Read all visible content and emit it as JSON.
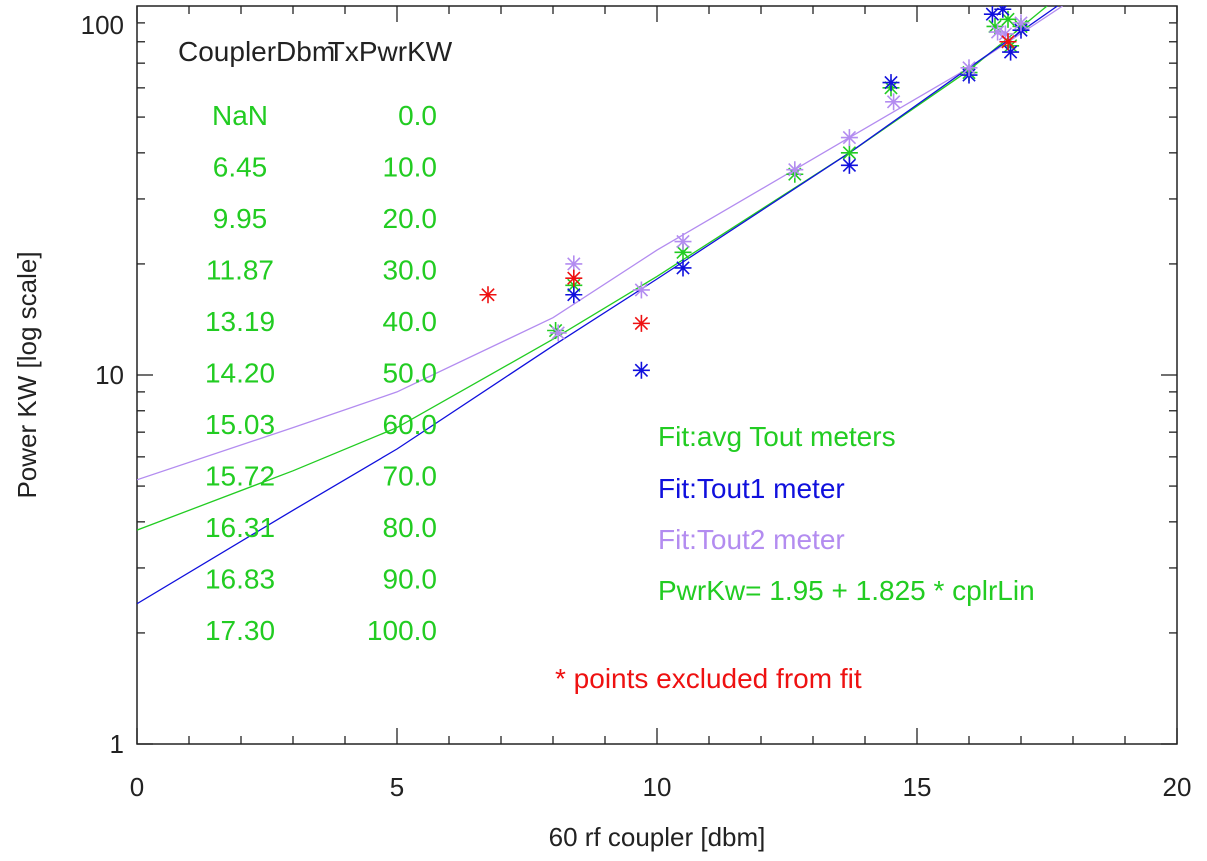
{
  "chart_data": {
    "type": "scatter",
    "xlabel": "60 rf coupler [dbm]",
    "ylabel": "Power KW [log scale]",
    "xlim": [
      0,
      20
    ],
    "ylim": [
      1,
      100
    ],
    "y_scale": "log",
    "x_ticks": [
      0,
      5,
      10,
      15,
      20
    ],
    "x_tick_labels": [
      "0",
      "5",
      "10",
      "15",
      "20"
    ],
    "y_ticks": [
      1,
      10,
      100
    ],
    "y_tick_labels": [
      "1",
      "10",
      "100"
    ],
    "table": {
      "headers": [
        "CouplerDbm",
        "TxPwrKW"
      ],
      "rows": [
        [
          "NaN",
          "0.0"
        ],
        [
          "6.45",
          "10.0"
        ],
        [
          "9.95",
          "20.0"
        ],
        [
          "11.87",
          "30.0"
        ],
        [
          "13.19",
          "40.0"
        ],
        [
          "14.20",
          "50.0"
        ],
        [
          "15.03",
          "60.0"
        ],
        [
          "15.72",
          "70.0"
        ],
        [
          "16.31",
          "80.0"
        ],
        [
          "16.83",
          "90.0"
        ],
        [
          "17.30",
          "100.0"
        ]
      ]
    },
    "annotations": {
      "fit_avg": "Fit:avg Tout meters",
      "fit_tout1": "Fit:Tout1 meter",
      "fit_tout2": "Fit:Tout2 meter",
      "formula": "PwrKw= 1.95 + 1.825 * cplrLin",
      "excluded_note": "* points excluded from fit"
    },
    "colors": {
      "avg": "#22cc22",
      "tout1": "#1010dd",
      "tout2": "#b38cf0",
      "excluded": "#ee1111",
      "text": "#222222"
    },
    "fits": {
      "avg": [
        [
          0,
          3.8
        ],
        [
          3,
          5.5
        ],
        [
          5,
          7.2
        ],
        [
          8,
          12.5
        ],
        [
          10,
          18.5
        ],
        [
          13.7,
          40
        ],
        [
          16,
          67
        ],
        [
          17.5,
          100
        ]
      ],
      "tout1": [
        [
          0,
          2.4
        ],
        [
          3,
          4.3
        ],
        [
          5,
          6.3
        ],
        [
          8,
          12
        ],
        [
          10,
          18.2
        ],
        [
          13.7,
          40
        ],
        [
          16,
          68
        ],
        [
          17.7,
          100
        ]
      ],
      "tout2": [
        [
          0,
          5.2
        ],
        [
          3,
          7.2
        ],
        [
          5,
          9
        ],
        [
          8,
          14.3
        ],
        [
          10,
          21.8
        ],
        [
          13.7,
          44
        ],
        [
          16,
          68
        ],
        [
          17.8,
          100
        ]
      ]
    },
    "series": [
      {
        "key": "avg",
        "points": [
          [
            8.05,
            13.2
          ],
          [
            8.4,
            17.5
          ],
          [
            10.5,
            21.5
          ],
          [
            12.65,
            35
          ],
          [
            13.7,
            40
          ],
          [
            14.5,
            60
          ],
          [
            16,
            66
          ],
          [
            16.5,
            88
          ],
          [
            16.75,
            92
          ],
          [
            16.8,
            78
          ],
          [
            17,
            88
          ]
        ]
      },
      {
        "key": "tout1",
        "points": [
          [
            8.4,
            16.5
          ],
          [
            9.7,
            10.3
          ],
          [
            10.5,
            19.5
          ],
          [
            13.7,
            37
          ],
          [
            14.5,
            62
          ],
          [
            16,
            65
          ],
          [
            16.45,
            95
          ],
          [
            16.65,
            98
          ],
          [
            16.8,
            75
          ],
          [
            17,
            86
          ]
        ]
      },
      {
        "key": "tout2",
        "points": [
          [
            8.1,
            13
          ],
          [
            8.4,
            20
          ],
          [
            9.7,
            17
          ],
          [
            10.5,
            23
          ],
          [
            12.65,
            36
          ],
          [
            13.7,
            44
          ],
          [
            14.55,
            55
          ],
          [
            16,
            68
          ],
          [
            16.55,
            85
          ],
          [
            16.7,
            84
          ],
          [
            17,
            90
          ]
        ]
      },
      {
        "key": "excluded",
        "points": [
          [
            6.75,
            16.5
          ],
          [
            8.4,
            18.3
          ],
          [
            9.7,
            13.8
          ],
          [
            16.75,
            80
          ]
        ]
      }
    ]
  }
}
